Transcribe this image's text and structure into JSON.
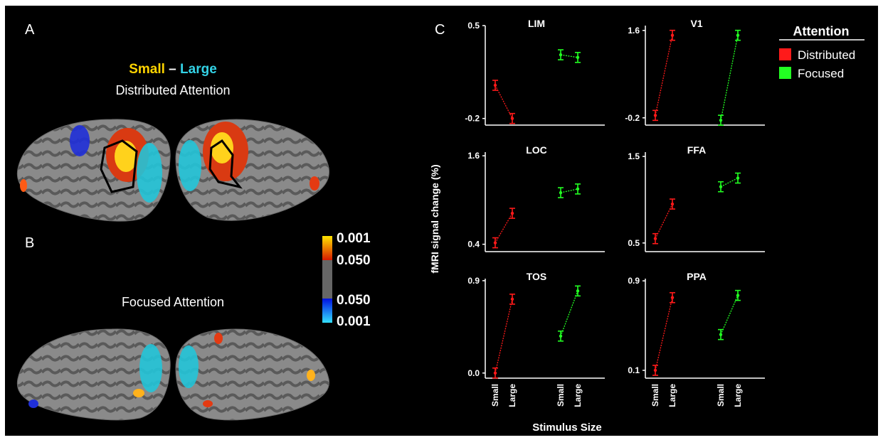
{
  "panels": {
    "a": {
      "label": "A",
      "contrast": {
        "left": "Small",
        "sep": " – ",
        "right": "Large",
        "left_color": "#ffd400",
        "right_color": "#33d2e6"
      },
      "condition": "Distributed Attention"
    },
    "b": {
      "label": "B",
      "condition": "Focused  Attention"
    },
    "c": {
      "label": "C"
    }
  },
  "colorbar": {
    "labels": [
      "0.001",
      "0.050",
      "0.050",
      "0.001"
    ],
    "colors": {
      "hot_top": "#ffe500",
      "hot_bottom": "#d81900",
      "gray": "#666666",
      "cold_top": "#0010e0",
      "cold_bottom": "#33e0ff"
    }
  },
  "legend": {
    "title": "Attention",
    "items": [
      {
        "label": "Distributed",
        "color": "#ff1a1a"
      },
      {
        "label": "Focused",
        "color": "#22ff22"
      }
    ]
  },
  "axis_labels": {
    "y": "fMRI signal change (%)",
    "x": "Stimulus Size"
  },
  "chart_data": [
    {
      "type": "line",
      "title": "LIM",
      "categories": [
        "Small",
        "Large"
      ],
      "yticks": [
        "0.5",
        "-0.2"
      ],
      "ylim": [
        -0.25,
        0.5
      ],
      "series": [
        {
          "name": "Distributed",
          "values": [
            0.05,
            -0.2
          ]
        },
        {
          "name": "Focused",
          "values": [
            0.28,
            0.26
          ]
        }
      ]
    },
    {
      "type": "line",
      "title": "V1",
      "categories": [
        "Small",
        "Large"
      ],
      "yticks": [
        "1.6",
        "-0.2"
      ],
      "ylim": [
        -0.35,
        1.7
      ],
      "series": [
        {
          "name": "Distributed",
          "values": [
            -0.15,
            1.5
          ]
        },
        {
          "name": "Focused",
          "values": [
            -0.25,
            1.5
          ]
        }
      ]
    },
    {
      "type": "line",
      "title": "LOC",
      "categories": [
        "Small",
        "Large"
      ],
      "yticks": [
        "1.6",
        "0.4"
      ],
      "ylim": [
        0.3,
        1.65
      ],
      "series": [
        {
          "name": "Distributed",
          "values": [
            0.42,
            0.82
          ]
        },
        {
          "name": "Focused",
          "values": [
            1.1,
            1.15
          ]
        }
      ]
    },
    {
      "type": "line",
      "title": "FFA",
      "categories": [
        "Small",
        "Large"
      ],
      "yticks": [
        "1.5",
        "0.5"
      ],
      "ylim": [
        0.4,
        1.55
      ],
      "series": [
        {
          "name": "Distributed",
          "values": [
            0.55,
            0.95
          ]
        },
        {
          "name": "Focused",
          "values": [
            1.15,
            1.25
          ]
        }
      ]
    },
    {
      "type": "line",
      "title": "TOS",
      "categories": [
        "Small",
        "Large"
      ],
      "yticks": [
        "0.9",
        "0.0"
      ],
      "ylim": [
        -0.05,
        0.92
      ],
      "series": [
        {
          "name": "Distributed",
          "values": [
            0.0,
            0.72
          ]
        },
        {
          "name": "Focused",
          "values": [
            0.36,
            0.8
          ]
        }
      ]
    },
    {
      "type": "line",
      "title": "PPA",
      "categories": [
        "Small",
        "Large"
      ],
      "yticks": [
        "0.9",
        "0.1"
      ],
      "ylim": [
        0.03,
        0.92
      ],
      "series": [
        {
          "name": "Distributed",
          "values": [
            0.1,
            0.75
          ]
        },
        {
          "name": "Focused",
          "values": [
            0.42,
            0.77
          ]
        }
      ]
    }
  ]
}
